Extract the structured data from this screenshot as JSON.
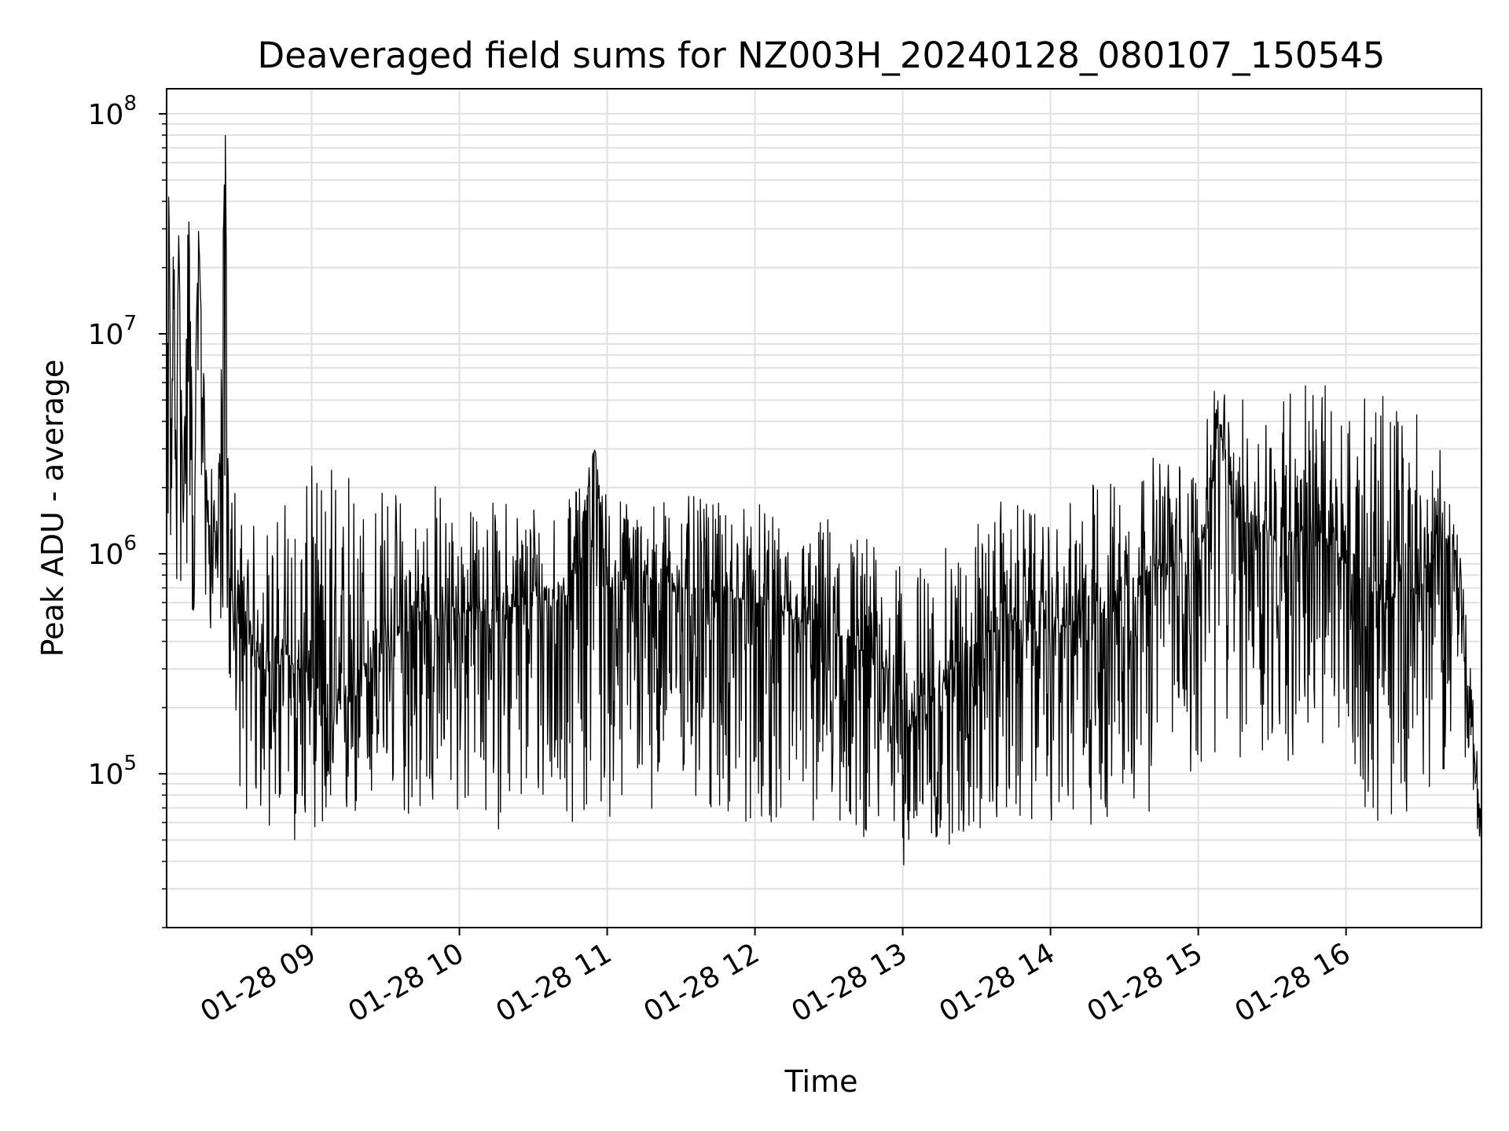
{
  "chart_data": {
    "type": "line",
    "title": "Deaveraged field sums for NZ003H_20240128_080107_150545",
    "xlabel": "Time",
    "ylabel": "Peak ADU - average",
    "yscale": "log",
    "ylim": [
      20000,
      130000000
    ],
    "xlim": [
      "2024-01-28T08:01:07",
      "2024-01-28T16:55:00"
    ],
    "grid": true,
    "line_color": "#000000",
    "grid_color": "#e0e0e0",
    "x_ticks": [
      {
        "t": "2024-01-28T09:00:00",
        "label": "01-28 09"
      },
      {
        "t": "2024-01-28T10:00:00",
        "label": "01-28 10"
      },
      {
        "t": "2024-01-28T11:00:00",
        "label": "01-28 11"
      },
      {
        "t": "2024-01-28T12:00:00",
        "label": "01-28 12"
      },
      {
        "t": "2024-01-28T13:00:00",
        "label": "01-28 13"
      },
      {
        "t": "2024-01-28T14:00:00",
        "label": "01-28 14"
      },
      {
        "t": "2024-01-28T15:00:00",
        "label": "01-28 15"
      },
      {
        "t": "2024-01-28T16:00:00",
        "label": "01-28 16"
      }
    ],
    "y_ticks": [
      {
        "value": 100000,
        "base": "10",
        "exp": "5"
      },
      {
        "value": 1000000,
        "base": "10",
        "exp": "6"
      },
      {
        "value": 10000000,
        "base": "10",
        "exp": "7"
      },
      {
        "value": 100000000,
        "base": "10",
        "exp": "8"
      }
    ],
    "series": [
      {
        "x": [
          "2024-01-28T08:01:07",
          "2024-01-28T08:02:00",
          "2024-01-28T08:03:00",
          "2024-01-28T08:04:00",
          "2024-01-28T08:05:00",
          "2024-01-28T08:06:00",
          "2024-01-28T08:08:00",
          "2024-01-28T08:10:00",
          "2024-01-28T08:12:00",
          "2024-01-28T08:14:00",
          "2024-01-28T08:18:00",
          "2024-01-28T08:20:00",
          "2024-01-28T08:22:00",
          "2024-01-28T08:25:00",
          "2024-01-28T08:26:00",
          "2024-01-28T08:28:00",
          "2024-01-28T08:32:00",
          "2024-01-28T08:36:00",
          "2024-01-28T08:40:00",
          "2024-01-28T08:45:00",
          "2024-01-28T08:50:00",
          "2024-01-28T08:55:00",
          "2024-01-28T09:00:00",
          "2024-01-28T09:08:00",
          "2024-01-28T09:15:00",
          "2024-01-28T09:20:00",
          "2024-01-28T09:30:00",
          "2024-01-28T09:40:00",
          "2024-01-28T09:50:00",
          "2024-01-28T10:00:00",
          "2024-01-28T10:15:00",
          "2024-01-28T10:30:00",
          "2024-01-28T10:45:00",
          "2024-01-28T10:55:00",
          "2024-01-28T11:00:00",
          "2024-01-28T11:15:00",
          "2024-01-28T11:30:00",
          "2024-01-28T11:45:00",
          "2024-01-28T12:00:00",
          "2024-01-28T12:15:00",
          "2024-01-28T12:30:00",
          "2024-01-28T12:45:00",
          "2024-01-28T12:55:00",
          "2024-01-28T13:00:00",
          "2024-01-28T13:15:00",
          "2024-01-28T13:30:00",
          "2024-01-28T13:45:00",
          "2024-01-28T14:00:00",
          "2024-01-28T14:15:00",
          "2024-01-28T14:30:00",
          "2024-01-28T14:45:00",
          "2024-01-28T15:00:00",
          "2024-01-28T15:08:00",
          "2024-01-28T15:15:00",
          "2024-01-28T15:30:00",
          "2024-01-28T15:45:00",
          "2024-01-28T16:00:00",
          "2024-01-28T16:15:00",
          "2024-01-28T16:30:00",
          "2024-01-28T16:40:00",
          "2024-01-28T16:45:00",
          "2024-01-28T16:50:00",
          "2024-01-28T16:55:00"
        ],
        "y": [
          1500000,
          50000000,
          2000000,
          35000000,
          1800000,
          30000000,
          1300000,
          42000000,
          1200000,
          30000000,
          1200000,
          1500000,
          1000000,
          85000000,
          800000,
          600000,
          450000,
          350000,
          400000,
          300000,
          350000,
          280000,
          300000,
          150000,
          250000,
          300000,
          400000,
          450000,
          500000,
          550000,
          550000,
          600000,
          650000,
          3000000,
          700000,
          750000,
          700000,
          650000,
          600000,
          500000,
          450000,
          350000,
          300000,
          150000,
          250000,
          400000,
          500000,
          450000,
          500000,
          700000,
          900000,
          800000,
          4000000,
          1500000,
          1200000,
          1300000,
          900000,
          600000,
          700000,
          1200000,
          1000000,
          200000,
          60000
        ],
        "low": [
          700000,
          1000000,
          600000,
          800000,
          500000,
          700000,
          500000,
          900000,
          400000,
          800000,
          400000,
          500000,
          350000,
          500000,
          300000,
          150000,
          70000,
          60000,
          55000,
          50000,
          50000,
          45000,
          60000,
          40000,
          50000,
          60000,
          70000,
          60000,
          60000,
          60000,
          55000,
          60000,
          60000,
          55000,
          60000,
          70000,
          65000,
          60000,
          55000,
          60000,
          55000,
          50000,
          45000,
          38000,
          45000,
          50000,
          55000,
          60000,
          55000,
          60000,
          70000,
          100000,
          100000,
          110000,
          100000,
          120000,
          100000,
          50000,
          80000,
          100000,
          150000,
          100000,
          40000
        ],
        "high": [
          3000000,
          53000000,
          5000000,
          36000000,
          5000000,
          31000000,
          3000000,
          43000000,
          2500000,
          31000000,
          2500000,
          2500000,
          2000000,
          88000000,
          2800000,
          2900000,
          1500000,
          1400000,
          1500000,
          1400000,
          2400000,
          1500000,
          2500000,
          2400000,
          2200000,
          2300000,
          2200000,
          2000000,
          2300000,
          1600000,
          1800000,
          2000000,
          1800000,
          3000000,
          2000000,
          1800000,
          1900000,
          1700000,
          1800000,
          1200000,
          1600000,
          1300000,
          900000,
          900000,
          1000000,
          1500000,
          1900000,
          1300000,
          2200000,
          2500000,
          2900000,
          2800000,
          6400000,
          5000000,
          6100000,
          7000000,
          5000000,
          5200000,
          5300000,
          2600000,
          1800000,
          350000,
          80000
        ]
      }
    ]
  }
}
